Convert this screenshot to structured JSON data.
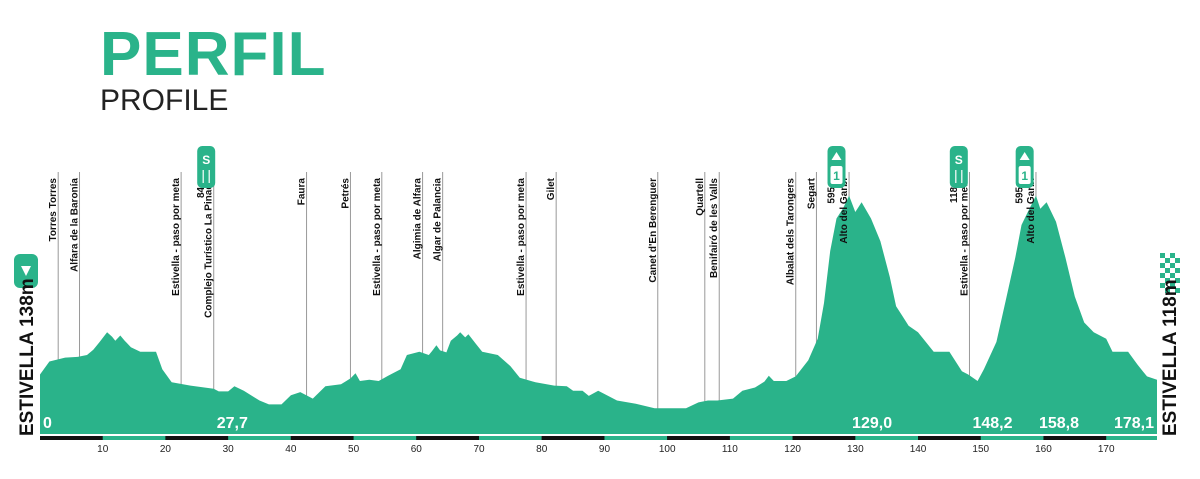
{
  "header": {
    "title": "PERFIL",
    "subtitle": "PROFILE"
  },
  "colors": {
    "fill": "#2ab38a",
    "axis": "#111111",
    "divider": "#999999"
  },
  "start_label": "ESTIVELLA 138m",
  "finish_label": "ESTIVELLA 118m",
  "chart_data": {
    "type": "area",
    "xlim": [
      0,
      178.1
    ],
    "x_ticks": [
      10,
      20,
      30,
      40,
      50,
      60,
      70,
      80,
      90,
      100,
      110,
      120,
      130,
      140,
      150,
      160,
      170
    ],
    "profile": [
      [
        0,
        -0.3
      ],
      [
        1.5,
        -0.1
      ],
      [
        4,
        -0.04
      ],
      [
        6,
        -0.03
      ],
      [
        7.5,
        0.0
      ],
      [
        8.5,
        0.08
      ],
      [
        9.5,
        0.2
      ],
      [
        10.7,
        0.35
      ],
      [
        11.5,
        0.28
      ],
      [
        12,
        0.22
      ],
      [
        12.8,
        0.3
      ],
      [
        13.5,
        0.22
      ],
      [
        14.5,
        0.12
      ],
      [
        16,
        0.05
      ],
      [
        18.5,
        0.05
      ],
      [
        19.5,
        -0.22
      ],
      [
        21,
        -0.42
      ],
      [
        24,
        -0.47
      ],
      [
        27.7,
        -0.52
      ],
      [
        28.5,
        -0.56
      ],
      [
        30,
        -0.56
      ],
      [
        31,
        -0.48
      ],
      [
        32.5,
        -0.55
      ],
      [
        35,
        -0.7
      ],
      [
        36.5,
        -0.76
      ],
      [
        38.5,
        -0.76
      ],
      [
        40,
        -0.62
      ],
      [
        41.5,
        -0.57
      ],
      [
        43.5,
        -0.67
      ],
      [
        45.5,
        -0.48
      ],
      [
        48,
        -0.45
      ],
      [
        49.5,
        -0.36
      ],
      [
        50.3,
        -0.28
      ],
      [
        51,
        -0.4
      ],
      [
        52.5,
        -0.38
      ],
      [
        54,
        -0.4
      ],
      [
        55.5,
        -0.32
      ],
      [
        57.5,
        -0.22
      ],
      [
        58.5,
        0.0
      ],
      [
        60.5,
        0.05
      ],
      [
        62,
        0.0
      ],
      [
        62.5,
        0.06
      ],
      [
        63.2,
        0.15
      ],
      [
        63.8,
        0.07
      ],
      [
        64.8,
        0.04
      ],
      [
        65.5,
        0.22
      ],
      [
        66.5,
        0.3
      ],
      [
        67,
        0.35
      ],
      [
        67.8,
        0.27
      ],
      [
        68.3,
        0.32
      ],
      [
        69.5,
        0.17
      ],
      [
        70.5,
        0.05
      ],
      [
        73,
        0.0
      ],
      [
        75,
        -0.17
      ],
      [
        76.5,
        -0.35
      ],
      [
        79,
        -0.42
      ],
      [
        82,
        -0.47
      ],
      [
        84,
        -0.48
      ],
      [
        85,
        -0.55
      ],
      [
        86.5,
        -0.55
      ],
      [
        87.5,
        -0.63
      ],
      [
        89,
        -0.55
      ],
      [
        90,
        -0.6
      ],
      [
        92,
        -0.7
      ],
      [
        95,
        -0.75
      ],
      [
        98,
        -0.82
      ],
      [
        103,
        -0.82
      ],
      [
        105,
        -0.73
      ],
      [
        106.5,
        -0.7
      ],
      [
        108,
        -0.7
      ],
      [
        110.5,
        -0.67
      ],
      [
        112,
        -0.55
      ],
      [
        114,
        -0.5
      ],
      [
        115.5,
        -0.41
      ],
      [
        116.2,
        -0.32
      ],
      [
        117,
        -0.4
      ],
      [
        119,
        -0.4
      ],
      [
        120.5,
        -0.33
      ],
      [
        122.5,
        -0.08
      ],
      [
        124,
        0.25
      ],
      [
        125,
        0.8
      ],
      [
        126,
        1.6
      ],
      [
        127,
        2.1
      ],
      [
        128,
        2.25
      ],
      [
        129,
        2.45
      ],
      [
        130,
        2.2
      ],
      [
        131,
        2.35
      ],
      [
        132.5,
        2.1
      ],
      [
        134,
        1.75
      ],
      [
        135.5,
        1.2
      ],
      [
        136.5,
        0.75
      ],
      [
        137.5,
        0.6
      ],
      [
        138.5,
        0.45
      ],
      [
        140,
        0.35
      ],
      [
        142.5,
        0.05
      ],
      [
        145,
        0.05
      ],
      [
        147,
        -0.25
      ],
      [
        148,
        -0.3
      ],
      [
        149.5,
        -0.4
      ],
      [
        150.5,
        -0.22
      ],
      [
        152.5,
        0.2
      ],
      [
        154,
        0.85
      ],
      [
        155.5,
        1.5
      ],
      [
        156.5,
        2.0
      ],
      [
        157.5,
        2.2
      ],
      [
        158.8,
        2.45
      ],
      [
        159.5,
        2.25
      ],
      [
        160.5,
        2.35
      ],
      [
        162,
        2.05
      ],
      [
        163.5,
        1.5
      ],
      [
        165,
        0.9
      ],
      [
        166.5,
        0.5
      ],
      [
        168,
        0.35
      ],
      [
        170,
        0.25
      ],
      [
        171,
        0.05
      ],
      [
        173.5,
        0.05
      ],
      [
        175,
        -0.15
      ],
      [
        176.5,
        -0.33
      ],
      [
        178.1,
        -0.38
      ]
    ],
    "km_markers": [
      {
        "x": 0,
        "label": "0"
      },
      {
        "x": 27.7,
        "label": "27,7"
      },
      {
        "x": 129.0,
        "label": "129,0"
      },
      {
        "x": 148.2,
        "label": "148,2"
      },
      {
        "x": 158.8,
        "label": "158,8"
      },
      {
        "x": 178.1,
        "label": "178,1"
      }
    ],
    "places": [
      {
        "x": 2.9,
        "name": "Torres Torres"
      },
      {
        "x": 6.3,
        "name": "Alfara de la Baronía"
      },
      {
        "x": 22.5,
        "name": "Estivella - paso por meta"
      },
      {
        "x": 26.5,
        "name": "84m",
        "short": true
      },
      {
        "x": 27.7,
        "name": "Complejo Turístico La Pinada"
      },
      {
        "x": 42.5,
        "name": "Faura"
      },
      {
        "x": 49.5,
        "name": "Petrés"
      },
      {
        "x": 54.5,
        "name": "Estivella - paso por meta"
      },
      {
        "x": 61.0,
        "name": "Algimia de Alfara"
      },
      {
        "x": 64.2,
        "name": "Algar de Palancia"
      },
      {
        "x": 77.5,
        "name": "Estivella - paso por meta"
      },
      {
        "x": 82.3,
        "name": "Gilet"
      },
      {
        "x": 98.5,
        "name": "Canet d'En Berenguer"
      },
      {
        "x": 106.0,
        "name": "Quartell"
      },
      {
        "x": 108.3,
        "name": "Benifairó de les Valls"
      },
      {
        "x": 120.5,
        "name": "Albalat dels Tarongers"
      },
      {
        "x": 123.8,
        "name": "Segart"
      },
      {
        "x": 127.0,
        "name": "595m",
        "short": true
      },
      {
        "x": 129.0,
        "name": "Alto del Garbí"
      },
      {
        "x": 146.5,
        "name": "118m",
        "short": true
      },
      {
        "x": 148.2,
        "name": "Estivella - paso por meta"
      },
      {
        "x": 157.0,
        "name": "595m",
        "short": true
      },
      {
        "x": 158.8,
        "name": "Alto del Garbí"
      }
    ],
    "badges": [
      {
        "x": 26.5,
        "type": "sprint",
        "text": "S"
      },
      {
        "x": 127.0,
        "type": "climb",
        "category": "1"
      },
      {
        "x": 146.5,
        "type": "sprint",
        "text": "S"
      },
      {
        "x": 157.0,
        "type": "climb",
        "category": "1"
      }
    ]
  }
}
